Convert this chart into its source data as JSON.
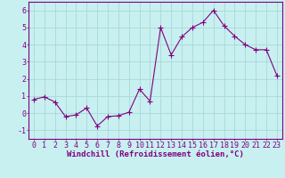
{
  "x": [
    0,
    1,
    2,
    3,
    4,
    5,
    6,
    7,
    8,
    9,
    10,
    11,
    12,
    13,
    14,
    15,
    16,
    17,
    18,
    19,
    20,
    21,
    22,
    23
  ],
  "y": [
    0.8,
    0.95,
    0.65,
    -0.2,
    -0.1,
    0.3,
    -0.75,
    -0.2,
    -0.15,
    0.05,
    1.4,
    0.7,
    5.0,
    3.4,
    4.45,
    5.0,
    5.3,
    6.0,
    5.1,
    4.5,
    4.0,
    3.7,
    3.7,
    2.2
  ],
  "line_color": "#800080",
  "marker": "+",
  "marker_size": 4,
  "bg_color": "#c8f0f0",
  "grid_color": "#a8d8d8",
  "xlabel": "Windchill (Refroidissement éolien,°C)",
  "ylim": [
    -1.5,
    6.5
  ],
  "xlim": [
    -0.5,
    23.5
  ],
  "yticks": [
    -1,
    0,
    1,
    2,
    3,
    4,
    5,
    6
  ],
  "xtick_labels": [
    "0",
    "1",
    "2",
    "3",
    "4",
    "5",
    "6",
    "7",
    "8",
    "9",
    "10",
    "11",
    "12",
    "13",
    "14",
    "15",
    "16",
    "17",
    "18",
    "19",
    "20",
    "21",
    "22",
    "23"
  ],
  "xlabel_fontsize": 6.5,
  "tick_fontsize": 6.0,
  "label_color": "#800080",
  "axis_color": "#800080",
  "line_width": 0.8,
  "spine_linewidth": 0.8
}
